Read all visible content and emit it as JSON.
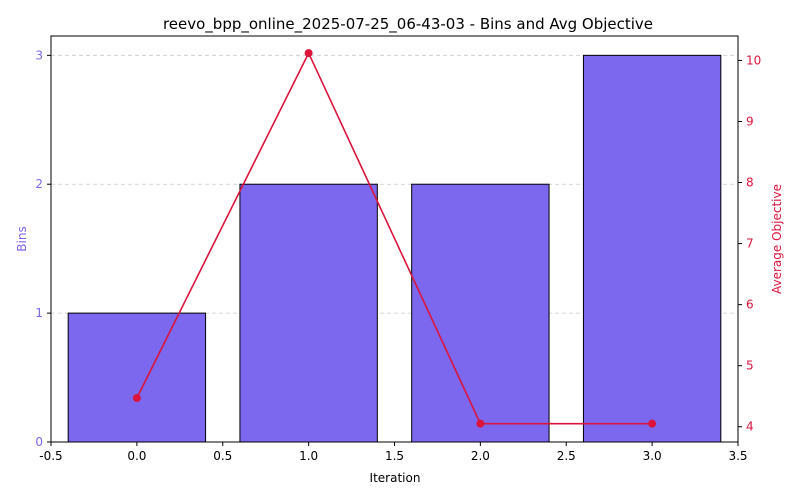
{
  "chart_data": {
    "type": "bar+line",
    "title": "reevo_bpp_online_2025-07-25_06-43-03 - Bins and Avg Objective",
    "xlabel": "Iteration",
    "x": [
      0,
      1,
      2,
      3
    ],
    "xlim": [
      -0.5,
      3.5
    ],
    "xticks": [
      "-0.5",
      "0.0",
      "0.5",
      "1.0",
      "1.5",
      "2.0",
      "2.5",
      "3.0",
      "3.5"
    ],
    "bars": {
      "name": "Bins",
      "axis": "left",
      "values": [
        1,
        2,
        2,
        3
      ],
      "color": "#7b68ee",
      "edge_color": "#000000"
    },
    "line": {
      "name": "Average Objective",
      "axis": "right",
      "values": [
        4.47,
        10.12,
        4.05,
        4.05
      ],
      "color": "#dc143c"
    },
    "y_left": {
      "label": "Bins",
      "ylim": [
        0,
        3.15
      ],
      "ticks": [
        "0",
        "1",
        "2",
        "3"
      ],
      "color": "#7b68ee"
    },
    "y_right": {
      "label": "Average Objective",
      "ylim": [
        3.75,
        10.4
      ],
      "ticks": [
        "4",
        "5",
        "6",
        "7",
        "8",
        "9",
        "10"
      ],
      "color": "#dc143c"
    },
    "grid": "horizontal-dashed"
  }
}
